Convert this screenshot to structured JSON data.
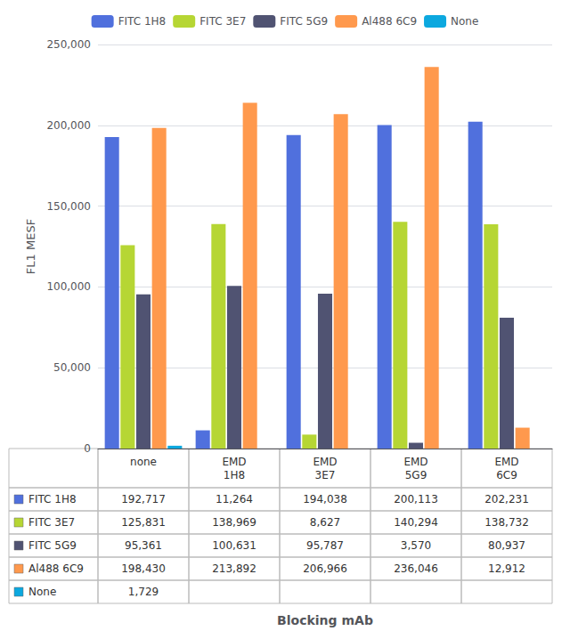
{
  "chart_data": {
    "type": "bar",
    "categories": [
      "none",
      "EMD\n1H8",
      "EMD\n3E7",
      "EMD\n5G9",
      "EMD\n6C9"
    ],
    "series": [
      {
        "name": "FITC 1H8",
        "values": [
          192717,
          11264,
          194038,
          200113,
          202231
        ],
        "value_labels": [
          "192,717",
          "11,264",
          "194,038",
          "200,113",
          "202,231"
        ]
      },
      {
        "name": "FITC 3E7",
        "values": [
          125831,
          138969,
          8627,
          140294,
          138732
        ],
        "value_labels": [
          "125,831",
          "138,969",
          "8,627",
          "140,294",
          "138,732"
        ]
      },
      {
        "name": "FITC 5G9",
        "values": [
          95361,
          100631,
          95787,
          3570,
          80937
        ],
        "value_labels": [
          "95,361",
          "100,631",
          "95,787",
          "3,570",
          "80,937"
        ]
      },
      {
        "name": "Al488 6C9",
        "values": [
          198430,
          213892,
          206966,
          236046,
          12912
        ],
        "value_labels": [
          "198,430",
          "213,892",
          "206,966",
          "236,046",
          "12,912"
        ]
      },
      {
        "name": "None",
        "values": [
          1729,
          0,
          0,
          0,
          0
        ],
        "value_labels": [
          "1,729",
          null,
          null,
          null,
          null
        ]
      }
    ],
    "xlabel": "Blocking mAb",
    "ylabel": "FL1 MESF",
    "ylim": [
      0,
      250000
    ],
    "yticks": [
      0,
      {
        "value": 50000,
        "label": "50,000"
      },
      {
        "value": 100000,
        "label": "100,000"
      },
      {
        "value": 150000,
        "label": "150,000"
      },
      {
        "value": 200000,
        "label": "200,000"
      },
      {
        "value": 250000,
        "label": "250,000"
      }
    ],
    "grid": true,
    "legend": "top"
  }
}
